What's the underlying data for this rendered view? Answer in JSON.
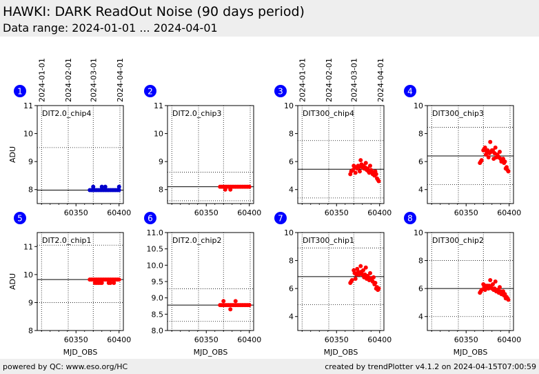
{
  "header": {
    "title": "HAWKI: DARK ReadOut Noise (90 days period)",
    "subtitle": "Data range: 2024-01-01 ... 2024-04-01"
  },
  "footer": {
    "left": "powered by QC: www.eso.org/HC",
    "right": "created by trendPlotter v4.1.2 on 2024-04-15T07:00:59"
  },
  "colors": {
    "points": "#ff0000",
    "points_alt": "#0000cc",
    "badge": "#0000ff",
    "header_bg": "#eeeeee"
  },
  "date_ticks": [
    "2024-01-01",
    "2024-02-01",
    "2024-03-01",
    "2024-04-01"
  ],
  "chart_data": [
    {
      "panel": "1",
      "type": "scatter",
      "label": "DIT2.0_chip4",
      "ylabel": "ADU",
      "xlabel": "",
      "ylim": [
        7.5,
        11
      ],
      "yticks": [
        8,
        9,
        10,
        11
      ],
      "xlim": [
        60305,
        60405
      ],
      "xticks": [
        60350,
        60400
      ],
      "ref_line": 7.98,
      "grid_y": [
        9.5
      ],
      "color": "#0000cc",
      "x": [
        60366,
        60368,
        60370,
        60372,
        60374,
        60376,
        60378,
        60380,
        60382,
        60384,
        60386,
        60388,
        60390,
        60392,
        60394,
        60396,
        60398,
        60400,
        60370,
        60380,
        60384,
        60400
      ],
      "y": [
        7.98,
        7.98,
        7.98,
        7.98,
        7.98,
        7.98,
        7.98,
        7.98,
        7.98,
        7.98,
        7.98,
        7.98,
        7.98,
        7.98,
        7.98,
        7.98,
        7.98,
        7.98,
        8.1,
        8.1,
        8.1,
        8.1
      ]
    },
    {
      "panel": "2",
      "type": "scatter",
      "label": "DIT2.0_chip3",
      "ylabel": "",
      "xlabel": "",
      "ylim": [
        7.5,
        11
      ],
      "yticks": [
        8,
        9,
        10,
        11
      ],
      "xlim": [
        60305,
        60405
      ],
      "xticks": [
        60350,
        60400
      ],
      "ref_line": 8.1,
      "grid_y": [
        8.62,
        7.6
      ],
      "color": "#ff0000",
      "x": [
        60366,
        60368,
        60370,
        60372,
        60374,
        60376,
        60378,
        60380,
        60382,
        60384,
        60386,
        60388,
        60390,
        60392,
        60394,
        60396,
        60398,
        60400,
        60372,
        60378
      ],
      "y": [
        8.1,
        8.1,
        8.1,
        8.1,
        8.1,
        8.1,
        8.1,
        8.1,
        8.1,
        8.1,
        8.1,
        8.1,
        8.1,
        8.1,
        8.1,
        8.1,
        8.1,
        8.1,
        8.0,
        8.0
      ]
    },
    {
      "panel": "3",
      "type": "scatter",
      "label": "DIT300_chip4",
      "ylabel": "",
      "xlabel": "",
      "ylim": [
        3,
        10
      ],
      "yticks": [
        4,
        6,
        8,
        10
      ],
      "xlim": [
        60305,
        60405
      ],
      "xticks": [
        60350,
        60400
      ],
      "ref_line": 5.45,
      "grid_y": [
        7.5,
        3.4
      ],
      "color": "#ff0000",
      "x": [
        60366,
        60367,
        60369,
        60370,
        60371,
        60372,
        60373,
        60374,
        60375,
        60376,
        60377,
        60378,
        60379,
        60380,
        60381,
        60382,
        60383,
        60384,
        60385,
        60386,
        60387,
        60388,
        60389,
        60390,
        60391,
        60392,
        60393,
        60394,
        60395,
        60396,
        60397,
        60398,
        60399
      ],
      "y": [
        5.1,
        5.3,
        5.4,
        5.7,
        5.6,
        5.2,
        5.6,
        5.5,
        5.7,
        5.6,
        5.3,
        6.1,
        5.8,
        5.6,
        5.7,
        5.5,
        5.6,
        5.9,
        5.4,
        5.5,
        5.3,
        5.2,
        5.7,
        5.4,
        5.3,
        5.1,
        5.2,
        5.0,
        5.3,
        5.1,
        4.8,
        4.7,
        4.6
      ]
    },
    {
      "panel": "4",
      "type": "scatter",
      "label": "DIT300_chip3",
      "ylabel": "",
      "xlabel": "",
      "ylim": [
        3,
        10
      ],
      "yticks": [
        4,
        6,
        8,
        10
      ],
      "xlim": [
        60305,
        60405
      ],
      "xticks": [
        60350,
        60400
      ],
      "ref_line": 6.4,
      "grid_y": [
        8.45,
        4.35
      ],
      "color": "#ff0000",
      "x": [
        60366,
        60367,
        60368,
        60370,
        60371,
        60372,
        60373,
        60374,
        60375,
        60376,
        60377,
        60378,
        60379,
        60380,
        60381,
        60382,
        60383,
        60384,
        60385,
        60386,
        60387,
        60388,
        60389,
        60390,
        60391,
        60392,
        60393,
        60394,
        60395,
        60396,
        60397,
        60398,
        60399
      ],
      "y": [
        5.9,
        6.0,
        6.1,
        6.8,
        6.9,
        7.0,
        6.5,
        6.7,
        6.8,
        6.3,
        6.6,
        7.4,
        6.7,
        6.8,
        6.8,
        6.2,
        6.6,
        7.0,
        6.3,
        6.5,
        6.4,
        6.3,
        6.7,
        6.2,
        6.0,
        6.1,
        6.2,
        5.9,
        6.0,
        5.5,
        5.6,
        5.4,
        5.3
      ]
    },
    {
      "panel": "5",
      "type": "scatter",
      "label": "DIT2.0_chip1",
      "ylabel": "ADU",
      "xlabel": "MJD_OBS",
      "ylim": [
        8,
        11.5
      ],
      "yticks": [
        8,
        9,
        10,
        11
      ],
      "xlim": [
        60305,
        60405
      ],
      "xticks": [
        60350,
        60400
      ],
      "ref_line": 9.82,
      "grid_y": [
        11.05,
        9.0
      ],
      "color": "#ff0000",
      "x": [
        60366,
        60368,
        60370,
        60372,
        60374,
        60376,
        60378,
        60380,
        60382,
        60384,
        60386,
        60388,
        60390,
        60392,
        60394,
        60396,
        60398,
        60400,
        60372,
        60374,
        60376,
        60378,
        60380,
        60388,
        60390,
        60394
      ],
      "y": [
        9.82,
        9.82,
        9.82,
        9.82,
        9.82,
        9.82,
        9.82,
        9.82,
        9.82,
        9.82,
        9.82,
        9.82,
        9.82,
        9.82,
        9.82,
        9.82,
        9.82,
        9.82,
        9.7,
        9.7,
        9.7,
        9.7,
        9.7,
        9.7,
        9.7,
        9.7
      ]
    },
    {
      "panel": "6",
      "type": "scatter",
      "label": "DIT2.0_chip2",
      "ylabel": "",
      "xlabel": "MJD_OBS",
      "ylim": [
        8,
        11
      ],
      "yticks": [
        8.0,
        8.5,
        9.0,
        9.5,
        10.0,
        10.5,
        11.0
      ],
      "xlim": [
        60305,
        60405
      ],
      "xticks": [
        60350,
        60400
      ],
      "ref_line": 8.78,
      "grid_y": [
        9.28,
        8.28
      ],
      "color": "#ff0000",
      "x": [
        60366,
        60368,
        60370,
        60372,
        60374,
        60376,
        60378,
        60380,
        60382,
        60384,
        60386,
        60388,
        60390,
        60392,
        60394,
        60396,
        60398,
        60400,
        60370,
        60384,
        60378
      ],
      "y": [
        8.78,
        8.78,
        8.78,
        8.78,
        8.78,
        8.78,
        8.78,
        8.78,
        8.78,
        8.78,
        8.78,
        8.78,
        8.78,
        8.78,
        8.78,
        8.78,
        8.78,
        8.78,
        8.9,
        8.9,
        8.65
      ]
    },
    {
      "panel": "7",
      "type": "scatter",
      "label": "DIT300_chip1",
      "ylabel": "",
      "xlabel": "MJD_OBS",
      "ylim": [
        3,
        10
      ],
      "yticks": [
        4,
        6,
        8,
        10
      ],
      "xlim": [
        60305,
        60405
      ],
      "xticks": [
        60350,
        60400
      ],
      "ref_line": 6.85,
      "grid_y": [
        8.9,
        4.85
      ],
      "color": "#ff0000",
      "x": [
        60366,
        60367,
        60368,
        60370,
        60371,
        60372,
        60373,
        60374,
        60375,
        60376,
        60377,
        60378,
        60379,
        60380,
        60381,
        60382,
        60383,
        60384,
        60385,
        60386,
        60387,
        60388,
        60389,
        60390,
        60391,
        60392,
        60393,
        60394,
        60395,
        60396,
        60397,
        60398,
        60399
      ],
      "y": [
        6.4,
        6.5,
        6.6,
        7.3,
        7.1,
        6.7,
        7.0,
        7.4,
        7.2,
        7.0,
        7.1,
        7.6,
        7.2,
        7.0,
        7.3,
        6.8,
        7.0,
        7.5,
        6.7,
        6.9,
        6.8,
        6.6,
        7.1,
        6.7,
        6.6,
        6.5,
        6.8,
        6.3,
        6.4,
        6.0,
        6.1,
        5.9,
        6.0
      ]
    },
    {
      "panel": "8",
      "type": "scatter",
      "label": "DIT300_chip2",
      "ylabel": "",
      "xlabel": "MJD_OBS",
      "ylim": [
        3,
        10
      ],
      "yticks": [
        4,
        6,
        8,
        10
      ],
      "xlim": [
        60305,
        60405
      ],
      "xticks": [
        60350,
        60400
      ],
      "ref_line": 6.0,
      "grid_y": [
        8.0,
        4.0
      ],
      "color": "#ff0000",
      "x": [
        60366,
        60367,
        60368,
        60370,
        60371,
        60372,
        60373,
        60374,
        60375,
        60376,
        60377,
        60378,
        60379,
        60380,
        60381,
        60382,
        60383,
        60384,
        60385,
        60386,
        60387,
        60388,
        60389,
        60390,
        60391,
        60392,
        60393,
        60394,
        60395,
        60396,
        60397,
        60398,
        60399
      ],
      "y": [
        5.7,
        5.8,
        5.9,
        6.3,
        6.1,
        5.9,
        6.2,
        6.1,
        6.2,
        6.0,
        6.2,
        6.6,
        6.1,
        6.0,
        6.3,
        5.9,
        6.0,
        6.5,
        5.8,
        5.9,
        5.9,
        5.7,
        6.1,
        5.8,
        5.6,
        5.7,
        5.8,
        5.5,
        5.6,
        5.3,
        5.4,
        5.3,
        5.2
      ]
    }
  ]
}
